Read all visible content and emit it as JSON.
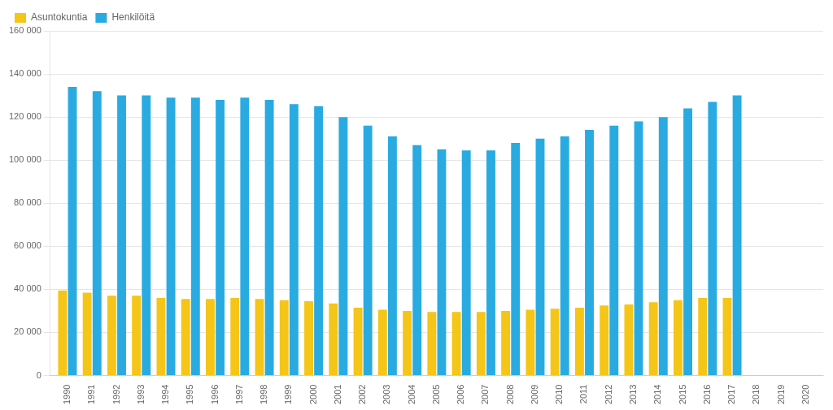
{
  "chart_data": {
    "type": "bar",
    "x": [
      1990,
      1991,
      1992,
      1993,
      1994,
      1995,
      1996,
      1997,
      1998,
      1999,
      2000,
      2001,
      2002,
      2003,
      2004,
      2005,
      2006,
      2007,
      2008,
      2009,
      2010,
      2011,
      2012,
      2013,
      2014,
      2015,
      2016,
      2017
    ],
    "series": [
      {
        "name": "Asuntokuntia",
        "color": "#F5C518",
        "values": [
          39500,
          38500,
          37000,
          37000,
          36000,
          35500,
          35500,
          36000,
          35500,
          35000,
          34500,
          33500,
          31500,
          30500,
          30000,
          29500,
          29500,
          29500,
          30000,
          30500,
          31000,
          31500,
          32500,
          33000,
          34000,
          35000,
          36000,
          36000
        ]
      },
      {
        "name": "Henkilöitä",
        "color": "#29ABE2",
        "values": [
          134000,
          132000,
          130000,
          130000,
          129000,
          129000,
          128000,
          129000,
          128000,
          126000,
          125000,
          120000,
          116000,
          111000,
          107000,
          105000,
          104500,
          104500,
          108000,
          110000,
          111000,
          114000,
          116000,
          118000,
          120000,
          124000,
          127000,
          130000
        ]
      }
    ],
    "xlim": [
      1989.3,
      2020.7
    ],
    "xticks": [
      1990,
      1991,
      1992,
      1993,
      1994,
      1995,
      1996,
      1997,
      1998,
      1999,
      2000,
      2001,
      2002,
      2003,
      2004,
      2005,
      2006,
      2007,
      2008,
      2009,
      2010,
      2011,
      2012,
      2013,
      2014,
      2015,
      2016,
      2017,
      2018,
      2019,
      2020
    ],
    "ylim": [
      0,
      160000
    ],
    "yticks": [
      0,
      {
        "value": 20000,
        "label": "20 000"
      },
      {
        "value": 40000,
        "label": "40 000"
      },
      {
        "value": 60000,
        "label": "60 000"
      },
      {
        "value": 80000,
        "label": "80 000"
      },
      {
        "value": 100000,
        "label": "100 000"
      },
      {
        "value": 120000,
        "label": "120 000"
      },
      {
        "value": 140000,
        "label": "140 000"
      },
      {
        "value": 160000,
        "label": "160 000"
      }
    ],
    "grid": true,
    "legend": "upper left"
  }
}
